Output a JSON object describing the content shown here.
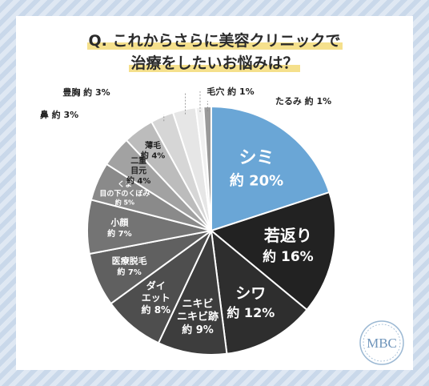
{
  "title_line1": "Q. これからさらに美容クリニックで",
  "title_line2": "治療をしたいお悩みは？",
  "logo_text": "MBC",
  "colors": {
    "highlight": "#f5e08c",
    "accent": "#6aa6d6",
    "background_stripe": "#c9d8ea"
  },
  "chart_data": {
    "type": "pie",
    "title": "Q. これからさらに美容クリニックで治療をしたいお悩みは？",
    "slices": [
      {
        "label": "シミ",
        "value_label": "約 20%",
        "value": 20,
        "color": "#6aa6d6",
        "text_color": "#ffffff"
      },
      {
        "label": "若返り",
        "value_label": "約 16%",
        "value": 16,
        "color": "#222222",
        "text_color": "#ffffff"
      },
      {
        "label": "シワ",
        "value_label": "約 12%",
        "value": 12,
        "color": "#2e2e2e",
        "text_color": "#ffffff"
      },
      {
        "label": "ニキビ ニキビ跡",
        "value_label": "約 9%",
        "value": 9,
        "color": "#3d3d3d",
        "text_color": "#ffffff"
      },
      {
        "label": "ダイ エット",
        "value_label": "約 8%",
        "value": 8,
        "color": "#4e4e4e",
        "text_color": "#ffffff"
      },
      {
        "label": "医療脱毛",
        "value_label": "約 7%",
        "value": 7,
        "color": "#606060",
        "text_color": "#ffffff"
      },
      {
        "label": "小顔",
        "value_label": "約 7%",
        "value": 7,
        "color": "#747474",
        "text_color": "#ffffff"
      },
      {
        "label": "くま 目の下のくぼみ",
        "value_label": "約 5%",
        "value": 5,
        "color": "#8a8a8a",
        "text_color": "#ffffff"
      },
      {
        "label": "二重 目元",
        "value_label": "約 4%",
        "value": 4,
        "color": "#a2a2a2",
        "text_color": "#222222"
      },
      {
        "label": "薄毛",
        "value_label": "約 4%",
        "value": 4,
        "color": "#bcbcbc",
        "text_color": "#222222"
      },
      {
        "label": "鼻",
        "value_label": "約 3%",
        "value": 3,
        "color": "#d6d6d6",
        "text_color": "#222222"
      },
      {
        "label": "豊胸",
        "value_label": "約 3%",
        "value": 3,
        "color": "#e6e6e6",
        "text_color": "#222222"
      },
      {
        "label": "毛穴",
        "value_label": "約 1%",
        "value": 1,
        "color": "#f0f0f0",
        "text_color": "#222222"
      },
      {
        "label": "たるみ",
        "value_label": "約 1%",
        "value": 1,
        "color": "#9a9a9a",
        "text_color": "#222222"
      }
    ]
  }
}
